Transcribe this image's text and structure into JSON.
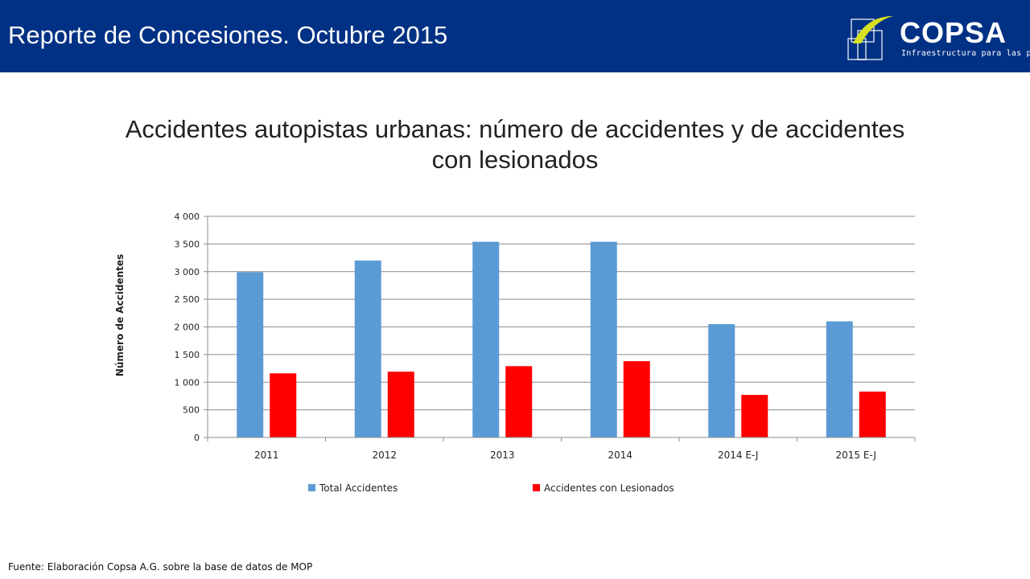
{
  "header": {
    "title": "Reporte de Concesiones. Octubre 2015",
    "background": "#013184"
  },
  "logo": {
    "name": "COPSA",
    "tagline": "Infraestructura para las personas",
    "accent": "#d7df23"
  },
  "chart_data": {
    "type": "bar",
    "title": "Accidentes autopistas urbanas: número de accidentes y de accidentes con lesionados",
    "ylabel": "Número de Accidentes",
    "xlabel": "",
    "categories": [
      "2011",
      "2012",
      "2013",
      "2014",
      "2014 E-J",
      "2015 E-J"
    ],
    "series": [
      {
        "name": "Total Accidentes",
        "color": "#5b9bd5",
        "values": [
          2990,
          3200,
          3540,
          3540,
          2050,
          2100
        ]
      },
      {
        "name": "Accidentes con Lesionados",
        "color": "#ff0000",
        "values": [
          1160,
          1190,
          1290,
          1380,
          770,
          830
        ]
      }
    ],
    "ylim": [
      0,
      4000
    ],
    "yticks": [
      0,
      500,
      1000,
      1500,
      2000,
      2500,
      3000,
      3500,
      4000
    ],
    "ytick_labels": [
      "0",
      "500",
      "1 000",
      "1 500",
      "2 000",
      "2 500",
      "3 000",
      "3 500",
      "4 000"
    ],
    "grid": true,
    "legend_position": "bottom"
  },
  "footer": {
    "source": "Fuente: Elaboración Copsa A.G. sobre la base de datos de MOP"
  }
}
